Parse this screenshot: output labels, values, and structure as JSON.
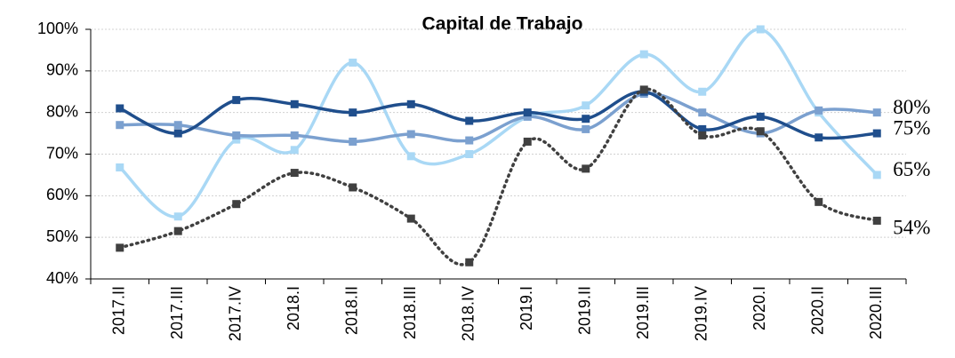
{
  "chart_data": {
    "type": "line",
    "title": "Capital de Trabajo",
    "categories": [
      "2017.II",
      "2017.III",
      "2017.IV",
      "2018.I",
      "2018.II",
      "2018.III",
      "2018.IV",
      "2019.I",
      "2019.II",
      "2019.III",
      "2019.IV",
      "2020.I",
      "2020.II",
      "2020.III"
    ],
    "series": [
      {
        "color": "#a9d8f5",
        "line_style": "solid",
        "values": [
          66.8,
          55,
          73.5,
          71,
          92,
          69.5,
          70,
          79,
          81.7,
          94,
          85,
          100,
          80,
          65
        ],
        "value_labels": [
          null,
          null,
          null,
          null,
          null,
          null,
          null,
          null,
          null,
          null,
          null,
          null,
          null,
          "65%"
        ]
      },
      {
        "color": "#7ba0cf",
        "line_style": "solid",
        "values": [
          77,
          77,
          74.5,
          74.5,
          73,
          74.8,
          73.3,
          79,
          76,
          84.5,
          80,
          75,
          80.5,
          80
        ],
        "value_labels": [
          null,
          null,
          null,
          null,
          null,
          null,
          null,
          null,
          null,
          null,
          null,
          null,
          null,
          "80%"
        ]
      },
      {
        "color": "#1f4e8c",
        "line_style": "solid",
        "values": [
          81,
          75,
          83,
          82,
          80,
          82,
          78,
          80,
          78.5,
          85,
          76,
          79,
          74,
          75
        ],
        "value_labels": [
          null,
          null,
          null,
          null,
          null,
          null,
          null,
          null,
          null,
          null,
          null,
          null,
          null,
          "75%"
        ]
      },
      {
        "color": "#404040",
        "line_style": "dotted",
        "values": [
          47.5,
          51.5,
          58,
          65.5,
          62,
          54.5,
          44,
          73,
          66.5,
          85.5,
          74.5,
          75.5,
          58.5,
          54
        ],
        "value_labels": [
          null,
          null,
          null,
          null,
          null,
          null,
          null,
          null,
          null,
          null,
          null,
          null,
          null,
          "54%"
        ]
      }
    ],
    "ylim": [
      40,
      100
    ],
    "yticks": [
      {
        "value": 40,
        "label": "40%"
      },
      {
        "value": 50,
        "label": "50%"
      },
      {
        "value": 60,
        "label": "60%"
      },
      {
        "value": 70,
        "label": "70%"
      },
      {
        "value": 80,
        "label": "80%"
      },
      {
        "value": 90,
        "label": "90%"
      },
      {
        "value": 100,
        "label": "100%"
      }
    ],
    "grid": true
  }
}
